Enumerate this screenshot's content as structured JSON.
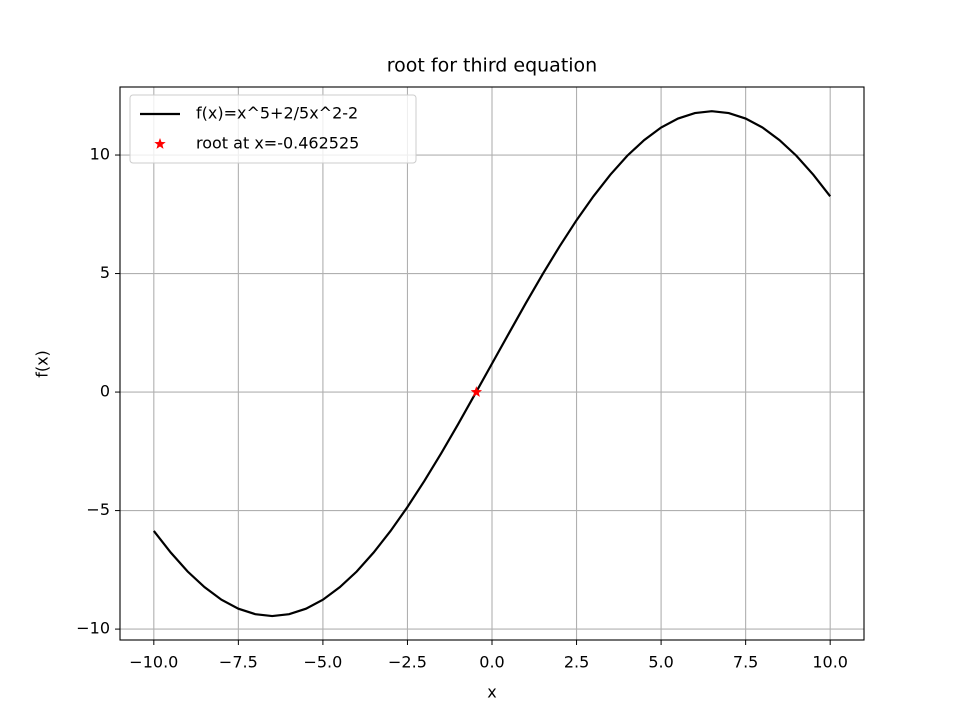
{
  "chart_data": {
    "type": "line",
    "title": "root for third equation",
    "x_label": "x",
    "y_label": "f(x)",
    "series": [
      {
        "name": "f(x)=x^5+2/5x^2-2",
        "color": "#000000",
        "marker": "none",
        "x": [
          -10,
          -9.5,
          -9,
          -8.5,
          -8,
          -7.5,
          -7,
          -6.5,
          -6,
          -5.5,
          -5,
          -4.5,
          -4,
          -3.5,
          -3,
          -2.5,
          -2,
          -1.5,
          -1,
          -0.5,
          0,
          0.5,
          1,
          1.5,
          2,
          2.5,
          3,
          3.5,
          4,
          4.5,
          5,
          5.5,
          6,
          6.5,
          7,
          7.5,
          8,
          8.5,
          9,
          9.5,
          10
        ],
        "values": [
          -5.86,
          -6.77,
          -7.57,
          -8.23,
          -8.76,
          -9.14,
          -9.37,
          -9.45,
          -9.37,
          -9.14,
          -8.76,
          -8.23,
          -7.57,
          -6.77,
          -5.86,
          -4.85,
          -3.75,
          -2.58,
          -1.35,
          -0.08,
          1.2,
          2.48,
          3.75,
          4.98,
          6.15,
          7.25,
          8.26,
          9.17,
          9.97,
          10.63,
          11.16,
          11.54,
          11.77,
          11.85,
          11.77,
          11.54,
          11.16,
          10.63,
          9.97,
          9.17,
          8.26
        ]
      },
      {
        "name": "root at x=-0.462525",
        "color": "#ff0000",
        "marker": "star",
        "x": [
          -0.462525
        ],
        "values": [
          0
        ]
      }
    ],
    "xlim": [
      -11,
      11
    ],
    "ylim": [
      -10.46,
      12.87
    ],
    "xticks": [
      {
        "value": -10,
        "label": "−10.0"
      },
      {
        "value": -7.5,
        "label": "−7.5"
      },
      {
        "value": -5,
        "label": "−5.0"
      },
      {
        "value": -2.5,
        "label": "−2.5"
      },
      {
        "value": 0,
        "label": "0.0"
      },
      {
        "value": 2.5,
        "label": "2.5"
      },
      {
        "value": 5,
        "label": "5.0"
      },
      {
        "value": 7.5,
        "label": "7.5"
      },
      {
        "value": 10,
        "label": "10.0"
      }
    ],
    "yticks": [
      {
        "value": -10,
        "label": "−10"
      },
      {
        "value": -5,
        "label": "−5"
      },
      0,
      5,
      10
    ],
    "grid": true,
    "legend": "upper left"
  }
}
